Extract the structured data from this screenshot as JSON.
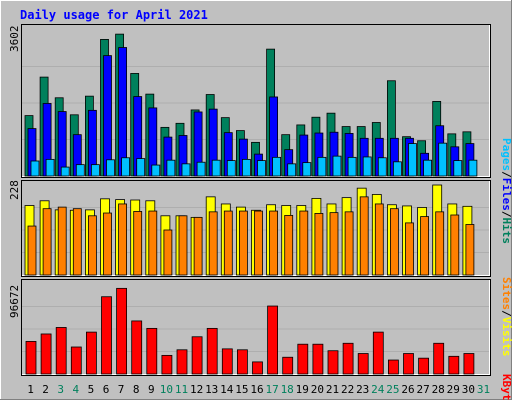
{
  "title": "Daily usage for April 2021",
  "colors": {
    "background": "#c0c0c0",
    "plot_bg": "#c0c0c0",
    "title": "#0000ff",
    "hits": "#00805c",
    "files": "#0000ff",
    "pages": "#00c0ff",
    "visits": "#ffff00",
    "sites": "#ff8000",
    "kbytes": "#ff0000",
    "weekend_label": "#00805c",
    "weekday_label": "#000000"
  },
  "chart_data": [
    {
      "type": "bar",
      "panel": "hits-files-pages",
      "ymax_label": "3602",
      "ymax": 3602,
      "legend": [
        "Pages",
        "/",
        "Files",
        "/",
        "Hits"
      ],
      "categories": [
        "1",
        "2",
        "3",
        "4",
        "5",
        "6",
        "7",
        "8",
        "9",
        "10",
        "11",
        "12",
        "13",
        "14",
        "15",
        "16",
        "17",
        "18",
        "19",
        "20",
        "21",
        "22",
        "23",
        "24",
        "25",
        "26",
        "27",
        "28",
        "29",
        "30",
        "31"
      ],
      "weekend_days": [
        "3",
        "4",
        "10",
        "11",
        "17",
        "18",
        "24",
        "25",
        "31"
      ],
      "series": [
        {
          "name": "Hits",
          "values": [
            1490,
            2440,
            1930,
            1510,
            1970,
            3370,
            3500,
            2530,
            2020,
            1200,
            1300,
            1630,
            2010,
            1440,
            1120,
            830,
            3130,
            1020,
            1260,
            1450,
            1550,
            1220,
            1220,
            1320,
            2350,
            970,
            870,
            1840,
            1040,
            1090,
            0
          ]
        },
        {
          "name": "Files",
          "values": [
            1170,
            1790,
            1590,
            1020,
            1620,
            2970,
            3170,
            1960,
            1680,
            960,
            1000,
            1580,
            1650,
            1070,
            910,
            540,
            1950,
            650,
            1010,
            1060,
            1080,
            1050,
            930,
            930,
            930,
            930,
            560,
            1240,
            720,
            800,
            0
          ]
        },
        {
          "name": "Pages",
          "values": [
            370,
            410,
            220,
            280,
            280,
            400,
            450,
            430,
            270,
            390,
            300,
            340,
            390,
            380,
            410,
            380,
            460,
            300,
            330,
            460,
            490,
            460,
            470,
            450,
            350,
            800,
            390,
            810,
            380,
            390,
            0
          ]
        }
      ]
    },
    {
      "type": "bar",
      "panel": "visits-sites",
      "ymax_label": "228",
      "ymax": 228,
      "legend": [
        "Sites",
        "/",
        "Visits"
      ],
      "categories": [
        "1",
        "2",
        "3",
        "4",
        "5",
        "6",
        "7",
        "8",
        "9",
        "10",
        "11",
        "12",
        "13",
        "14",
        "15",
        "16",
        "17",
        "18",
        "19",
        "20",
        "21",
        "22",
        "23",
        "24",
        "25",
        "26",
        "27",
        "28",
        "29",
        "30",
        "31"
      ],
      "series": [
        {
          "name": "Visits",
          "values": [
            176,
            188,
            165,
            164,
            165,
            193,
            191,
            190,
            188,
            150,
            150,
            146,
            198,
            180,
            172,
            164,
            178,
            176,
            176,
            194,
            180,
            196,
            220,
            204,
            178,
            175,
            171,
            228,
            180,
            174,
            0
          ]
        },
        {
          "name": "Sites",
          "values": [
            124,
            168,
            172,
            168,
            150,
            157,
            180,
            161,
            162,
            114,
            150,
            146,
            160,
            162,
            162,
            162,
            162,
            151,
            162,
            156,
            158,
            160,
            198,
            180,
            168,
            132,
            148,
            160,
            152,
            128,
            0
          ]
        }
      ]
    },
    {
      "type": "bar",
      "panel": "kbytes",
      "ymax_label": "96672",
      "ymax": 96672,
      "legend": [
        "KBytes"
      ],
      "categories": [
        "1",
        "2",
        "3",
        "4",
        "5",
        "6",
        "7",
        "8",
        "9",
        "10",
        "11",
        "12",
        "13",
        "14",
        "15",
        "16",
        "17",
        "18",
        "19",
        "20",
        "21",
        "22",
        "23",
        "24",
        "25",
        "26",
        "27",
        "28",
        "29",
        "30",
        "31"
      ],
      "series": [
        {
          "name": "KBytes",
          "values": [
            35000,
            43000,
            50000,
            29000,
            45000,
            83000,
            92000,
            57000,
            49000,
            20000,
            26000,
            40000,
            49000,
            27000,
            26000,
            13000,
            73000,
            18000,
            32000,
            32000,
            25000,
            33000,
            22000,
            45000,
            15000,
            22000,
            17000,
            33000,
            19000,
            22000,
            0
          ]
        }
      ]
    }
  ]
}
